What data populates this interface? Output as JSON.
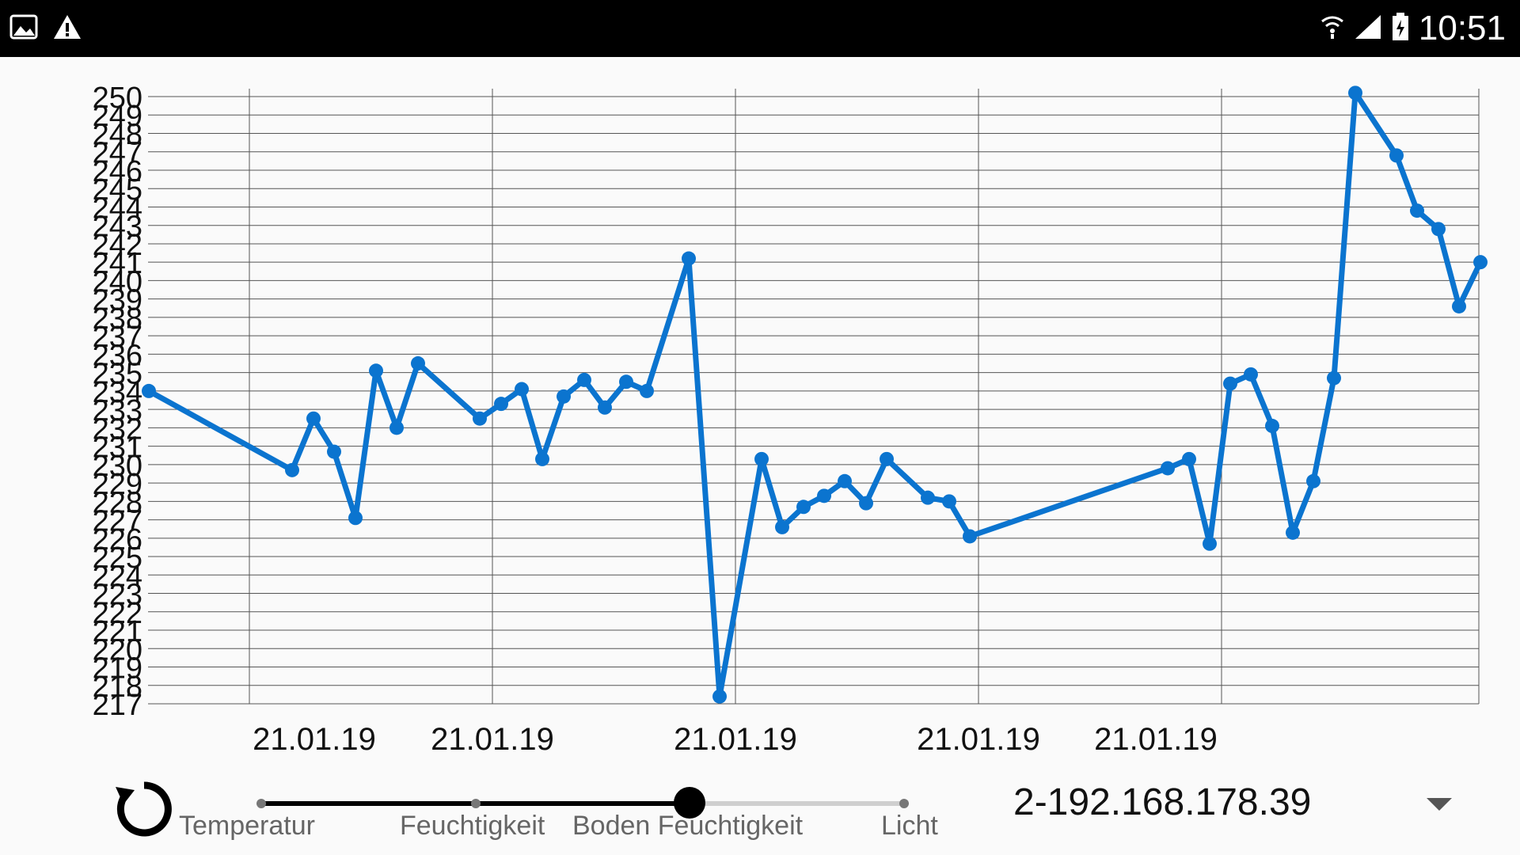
{
  "status_bar": {
    "time": "10:51",
    "left_icons": [
      "image-icon",
      "warning-icon"
    ],
    "right_icons": [
      "wifi-icon",
      "signal-icon",
      "battery-icon"
    ]
  },
  "chart_data": {
    "type": "line",
    "title": "",
    "xlabel": "",
    "ylabel": "",
    "ylim": [
      217,
      250
    ],
    "yticks": [
      217,
      218,
      219,
      220,
      221,
      222,
      223,
      224,
      225,
      226,
      227,
      228,
      229,
      230,
      231,
      232,
      233,
      234,
      235,
      236,
      237,
      238,
      239,
      240,
      241,
      242,
      243,
      244,
      245,
      246,
      247,
      248,
      249,
      250
    ],
    "xtick_labels": [
      "21.01.19",
      "21.01.19",
      "21.01.19",
      "21.01.19",
      "21.01.19"
    ],
    "grid": true,
    "color": "#0b74cf",
    "series": [
      {
        "values": [
          234.0,
          229.7,
          232.5,
          230.7,
          227.1,
          235.1,
          232.0,
          235.5,
          232.5,
          233.3,
          234.1,
          230.3,
          233.7,
          234.6,
          233.1,
          234.5,
          234.0,
          241.2,
          217.4,
          230.3,
          226.6,
          227.7,
          228.3,
          229.1,
          227.9,
          230.3,
          228.2,
          228.0,
          226.1,
          229.8,
          230.3,
          225.7,
          234.4,
          234.9,
          232.1,
          226.3,
          229.1,
          234.7,
          250.2,
          246.8,
          243.8,
          242.8,
          238.6,
          241.0
        ]
      }
    ]
  },
  "controls": {
    "slider_labels": [
      "Temperatur",
      "Feuchtigkeit",
      "Boden Feuchtigkeit",
      "Licht"
    ],
    "slider_selected_index": 2,
    "device": "2-192.168.178.39",
    "refresh_icon": "refresh-icon",
    "dropdown_icon": "dropdown-arrow-icon"
  }
}
